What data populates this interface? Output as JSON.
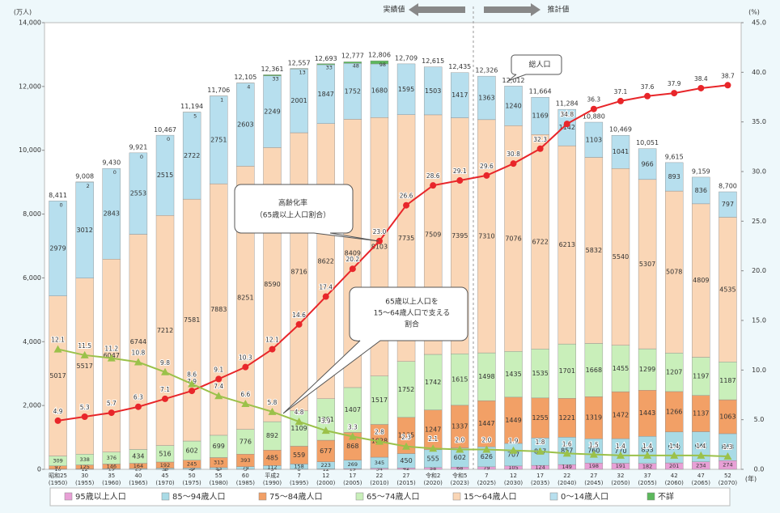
{
  "chart_data": {
    "type": "stacked-bar-line",
    "y_label": "(万人)",
    "y2_label": "(%)",
    "x_label": "(年)",
    "categories": [
      [
        "昭和25",
        "(1950)"
      ],
      [
        "30",
        "(1955)"
      ],
      [
        "35",
        "(1960)"
      ],
      [
        "40",
        "(1965)"
      ],
      [
        "45",
        "(1970)"
      ],
      [
        "50",
        "(1975)"
      ],
      [
        "55",
        "(1980)"
      ],
      [
        "60",
        "(1985)"
      ],
      [
        "平成2",
        "(1990)"
      ],
      [
        "7",
        "(1995)"
      ],
      [
        "12",
        "(2000)"
      ],
      [
        "17",
        "(2005)"
      ],
      [
        "22",
        "(2010)"
      ],
      [
        "27",
        "(2015)"
      ],
      [
        "令和2",
        "(2020)"
      ],
      [
        "令和5",
        "(2023)"
      ],
      [
        "7",
        "(2025)"
      ],
      [
        "12",
        "(2030)"
      ],
      [
        "17",
        "(2035)"
      ],
      [
        "22",
        "(2040)"
      ],
      [
        "27",
        "(2045)"
      ],
      [
        "32",
        "(2050)"
      ],
      [
        "37",
        "(2055)"
      ],
      [
        "42",
        "(2060)"
      ],
      [
        "47",
        "(2065)"
      ],
      [
        "52",
        "(2070)"
      ]
    ],
    "ylim": [
      0,
      14000
    ],
    "yticks": [
      0,
      {
        "value": 2000,
        "label": "2,000"
      },
      {
        "value": 4000,
        "label": "4,000"
      },
      {
        "value": 6000,
        "label": "6,000"
      },
      {
        "value": 8000,
        "label": "8,000"
      },
      {
        "value": 10000,
        "label": "10,000"
      },
      {
        "value": 12000,
        "label": "12,000"
      },
      {
        "value": 14000,
        "label": "14,000"
      }
    ],
    "y2lim": [
      0,
      45
    ],
    "y2ticks": [
      {
        "value": 0,
        "label": "0.0"
      },
      {
        "value": 5,
        "label": "5.0"
      },
      {
        "value": 10,
        "label": "10.0"
      },
      {
        "value": 15,
        "label": "15.0"
      },
      {
        "value": 20,
        "label": "20.0"
      },
      {
        "value": 25,
        "label": "25.0"
      },
      {
        "value": 30,
        "label": "30.0"
      },
      {
        "value": 35,
        "label": "35.0"
      },
      {
        "value": 40,
        "label": "40.0"
      },
      {
        "value": 45,
        "label": "45.0"
      }
    ],
    "series": [
      {
        "name": "95歳以上人口",
        "color": "#e8a0d6",
        "values": [
          0,
          0,
          0,
          0,
          1,
          1,
          2,
          3,
          5,
          8,
          12,
          19,
          34,
          42,
          58,
          68,
          79,
          105,
          124,
          149,
          198,
          191,
          182,
          201,
          234,
          274
        ]
      },
      {
        "name": "85～94歳人口",
        "color": "#a9dbe6",
        "values": [
          10,
          12,
          19,
          25,
          36,
          39,
          53,
          79,
          112,
          158,
          223,
          269,
          345,
          450,
          555,
          602,
          626,
          707,
          857,
          857,
          760,
          770,
          853,
          970,
          945,
          843
        ]
      },
      {
        "name": "75～84歳人口",
        "color": "#f2a066",
        "values": [
          97,
          125,
          146,
          164,
          192,
          245,
          313,
          393,
          485,
          559,
          677,
          868,
          1028,
          1135,
          1247,
          1337,
          1447,
          1449,
          1255,
          1221,
          1319,
          1472,
          1443,
          1266,
          1137,
          1063
        ]
      },
      {
        "name": "65～74歳人口",
        "color": "#c9efba",
        "values": [
          309,
          338,
          376,
          434,
          516,
          602,
          699,
          776,
          892,
          1109,
          1301,
          1407,
          1517,
          1752,
          1742,
          1615,
          1498,
          1435,
          1535,
          1701,
          1668,
          1455,
          1299,
          1207,
          1197,
          1187
        ]
      },
      {
        "name": "15～64歳人口",
        "color": "#fad6b6",
        "values": [
          5017,
          5517,
          6047,
          6744,
          7212,
          7581,
          7883,
          8251,
          8590,
          8716,
          8622,
          8409,
          8103,
          7735,
          7509,
          7395,
          7310,
          7076,
          6722,
          6213,
          5832,
          5540,
          5307,
          5078,
          4809,
          4535
        ]
      },
      {
        "name": "0～14歳人口",
        "color": "#b7dfee",
        "values": [
          2979,
          3012,
          2843,
          2553,
          2515,
          2722,
          2751,
          2603,
          2249,
          2001,
          1847,
          1752,
          1680,
          1595,
          1503,
          1417,
          1363,
          1240,
          1169,
          1142,
          1103,
          1041,
          966,
          893,
          836,
          797
        ]
      },
      {
        "name": "不詳",
        "color": "#5cb85c",
        "values": [
          0,
          2,
          0,
          0,
          0,
          5,
          1,
          4,
          33,
          13,
          33,
          48,
          98,
          null,
          null,
          null,
          null,
          null,
          null,
          null,
          null,
          null,
          null,
          null,
          null,
          null
        ]
      }
    ],
    "totals": {
      "values": [
        8411,
        9008,
        9430,
        9921,
        10467,
        11194,
        11706,
        12105,
        12361,
        12557,
        12693,
        12777,
        12806,
        12709,
        12615,
        12435,
        12326,
        12012,
        11664,
        11284,
        10880,
        10469,
        10051,
        9615,
        9159,
        8700
      ],
      "value_labels": [
        "8,411",
        "9,008",
        "9,430",
        "9,921",
        "10,467",
        "11,194",
        "11,706",
        "12,105",
        "12,361",
        "12,557",
        "12,693",
        "12,777",
        "12,806",
        "12,709",
        "12,615",
        "12,435",
        "12,326",
        "12,012",
        "11,664",
        "11,284",
        "10,880",
        "10,469",
        "10,051",
        "9,615",
        "9,159",
        "8,700"
      ]
    },
    "lines": [
      {
        "name": [
          "高齢化率",
          "（65歳以上人口割合）"
        ],
        "color": "#e8262a",
        "marker": "circle",
        "axis": "y2",
        "values": [
          4.9,
          5.3,
          5.7,
          6.3,
          7.1,
          7.9,
          9.1,
          10.3,
          12.1,
          14.6,
          17.4,
          20.2,
          23.0,
          26.6,
          28.6,
          29.1,
          29.6,
          30.8,
          32.3,
          34.8,
          36.3,
          37.1,
          37.6,
          37.9,
          38.4,
          38.7
        ],
        "value_labels": [
          "4.9",
          "5.3",
          "5.7",
          "6.3",
          "7.1",
          "7.9",
          "9.1",
          "10.3",
          "12.1",
          "14.6",
          "17.4",
          "20.2",
          "23.0",
          "26.6",
          "28.6",
          "29.1",
          "29.6",
          "30.8",
          "32.3",
          "34.8",
          "36.3",
          "37.1",
          "37.6",
          "37.9",
          "38.4",
          "38.7"
        ]
      },
      {
        "name": [
          "65歳以上人口を",
          "15～64歳人口で支える",
          "割合"
        ],
        "color": "#9bc14a",
        "marker": "triangle",
        "axis": "y2",
        "values": [
          12.1,
          11.5,
          11.2,
          10.8,
          9.8,
          8.6,
          7.4,
          6.6,
          5.8,
          4.8,
          3.9,
          3.3,
          2.8,
          2.3,
          2.1,
          2.0,
          2.0,
          1.9,
          1.8,
          1.6,
          1.5,
          1.4,
          1.4,
          1.4,
          1.4,
          1.3
        ],
        "value_labels": [
          "12.1",
          "11.5",
          "11.2",
          "10.8",
          "9.8",
          "8.6",
          "7.4",
          "6.6",
          "5.8",
          "4.8",
          "3.9",
          "3.3",
          "2.8",
          "2.3",
          "2.1",
          "2.0",
          "2.0",
          "1.9",
          "1.8",
          "1.6",
          "1.5",
          "1.4",
          "1.4",
          "1.4",
          "1.4",
          "1.3"
        ]
      }
    ],
    "annotations": {
      "actual": "実績値",
      "projected": "推計値",
      "total": "総人口"
    }
  }
}
